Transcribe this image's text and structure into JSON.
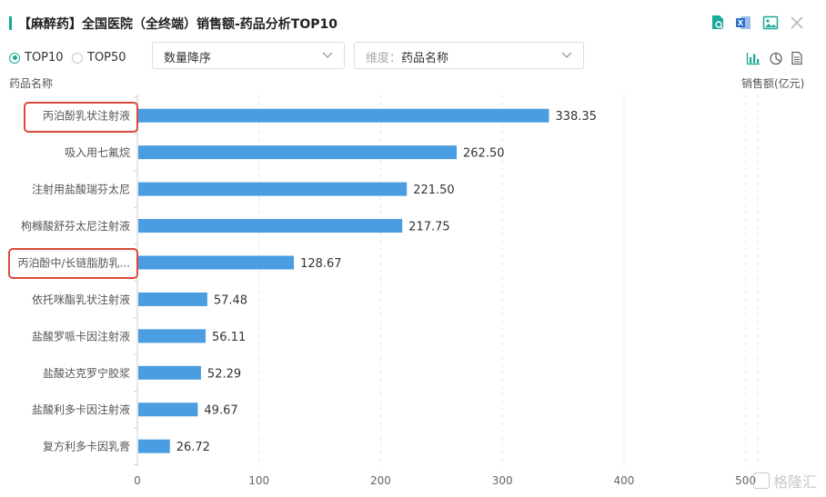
{
  "title": "【麻醉药】全国医院（全终端）销售额-药品分析TOP10",
  "toolbar": {
    "icons": [
      "search-doc-icon",
      "excel-export-icon",
      "image-export-icon",
      "close-icon"
    ]
  },
  "controls": {
    "radios": [
      {
        "label": "TOP10",
        "selected": true
      },
      {
        "label": "TOP50",
        "selected": false
      }
    ],
    "sort_select": {
      "value": "数量降序"
    },
    "dimension_select": {
      "prefix": "维度：",
      "value": "药品名称"
    },
    "view_icons": [
      "bar-chart-icon",
      "pie-chart-icon",
      "table-icon"
    ]
  },
  "colors": {
    "accent": "#1aa89a",
    "bar": "#4a9de0",
    "highlight": "#d94a3a"
  },
  "chart_data": {
    "type": "bar",
    "orientation": "horizontal",
    "ylabel": "药品名称",
    "xlabel": "销售额(亿元)",
    "categories": [
      "丙泊酚乳状注射液",
      "吸入用七氟烷",
      "注射用盐酸瑞芬太尼",
      "枸橼酸舒芬太尼注射液",
      "丙泊酚中/长链脂肪乳...",
      "依托咪酯乳状注射液",
      "盐酸罗哌卡因注射液",
      "盐酸达克罗宁胶浆",
      "盐酸利多卡因注射液",
      "复方利多卡因乳膏"
    ],
    "values": [
      338.35,
      262.5,
      221.5,
      217.75,
      128.67,
      57.48,
      56.11,
      52.29,
      49.67,
      26.72
    ],
    "value_labels": [
      "338.35",
      "262.50",
      "221.50",
      "217.75",
      "128.67",
      "57.48",
      "56.11",
      "52.29",
      "49.67",
      "26.72"
    ],
    "xticks": [
      0,
      100,
      200,
      300,
      400,
      500
    ],
    "xlim": [
      0,
      510
    ],
    "grid": "vertical-dashed",
    "highlighted": [
      "丙泊酚乳状注射液",
      "丙泊酚中/长链脂肪乳..."
    ]
  },
  "watermark": "格隆汇"
}
